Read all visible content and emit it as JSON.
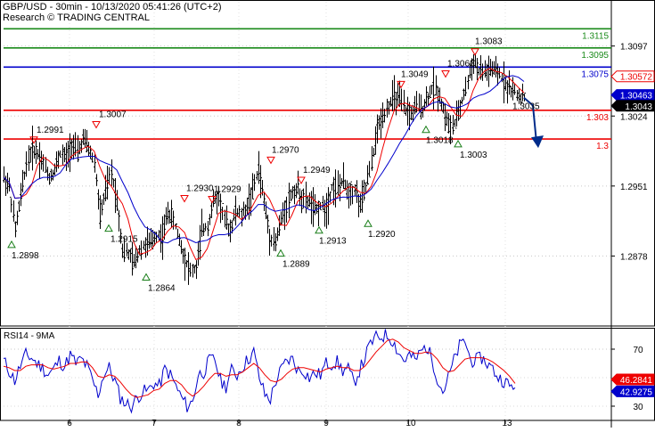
{
  "header": {
    "title": "GBP/USD - 30min - 10/13/2020 05:41:26 (UTC+2)",
    "subtitle": "Research © TRADING CENTRAL"
  },
  "colors": {
    "green": "#1a8a1a",
    "blue": "#0000cc",
    "red": "#ee0000",
    "price": "#000000",
    "arrow": "#002b8a",
    "marker_green": "#1a7f1a",
    "marker_red": "#ee0000"
  },
  "chart_data": [
    {
      "type": "line",
      "title": "GBP/USD - 30min - 10/13/2020 05:41:26 (UTC+2)",
      "x_tick_labels": [
        "6",
        "7",
        "8",
        "9",
        "10",
        "13"
      ],
      "y_tick_labels": [
        "1.3097",
        "1.3024",
        "1.2951",
        "1.2878"
      ],
      "ylim": [
        1.2805,
        1.3145
      ],
      "horizontal_levels": [
        {
          "value": 1.3115,
          "label": "1.3115",
          "color": "green"
        },
        {
          "value": 1.3095,
          "label": "1.3095",
          "color": "green"
        },
        {
          "value": 1.3075,
          "label": "1.3075",
          "color": "blue"
        },
        {
          "value": 1.303,
          "label": "1.303",
          "color": "red"
        },
        {
          "value": 1.3,
          "label": "1.3",
          "color": "red"
        }
      ],
      "price_tags": [
        {
          "value": 1.3057,
          "label": "1.30572",
          "style": "red-outline"
        },
        {
          "value": 1.3046,
          "label": "1.30463",
          "style": "blue-fill"
        },
        {
          "value": 1.3043,
          "label": "1.3043",
          "style": "black-fill"
        }
      ],
      "annotations": [
        {
          "label": "1.2898",
          "value": 1.2898,
          "kind": "low"
        },
        {
          "label": "1.2991",
          "value": 1.2991,
          "kind": "high"
        },
        {
          "label": "1.3007",
          "value": 1.3007,
          "kind": "high"
        },
        {
          "label": "1.2915",
          "value": 1.2915,
          "kind": "low"
        },
        {
          "label": "1.2864",
          "value": 1.2864,
          "kind": "low"
        },
        {
          "label": "1.2930",
          "value": 1.293,
          "kind": "high"
        },
        {
          "label": "1.2929",
          "value": 1.2929,
          "kind": "high"
        },
        {
          "label": "1.2970",
          "value": 1.297,
          "kind": "high"
        },
        {
          "label": "1.2889",
          "value": 1.2889,
          "kind": "low"
        },
        {
          "label": "1.2949",
          "value": 1.2949,
          "kind": "high"
        },
        {
          "label": "1.2913",
          "value": 1.2913,
          "kind": "low"
        },
        {
          "label": "1.2920",
          "value": 1.292,
          "kind": "low"
        },
        {
          "label": "1.3049",
          "value": 1.3049,
          "kind": "high"
        },
        {
          "label": "1.3060",
          "value": 1.306,
          "kind": "high"
        },
        {
          "label": "1.3083",
          "value": 1.3083,
          "kind": "high"
        },
        {
          "label": "1.3018",
          "value": 1.3018,
          "kind": "low"
        },
        {
          "label": "1.3003",
          "value": 1.3003,
          "kind": "low"
        },
        {
          "label": "1.3035",
          "value": 1.3035,
          "kind": "target"
        }
      ],
      "price_path": [
        1.296,
        1.295,
        1.2905,
        1.294,
        1.2975,
        1.299,
        1.2985,
        1.2975,
        1.296,
        1.2968,
        1.2985,
        1.298,
        1.2995,
        1.2985,
        1.3,
        1.299,
        1.2975,
        1.292,
        1.2945,
        1.2965,
        1.2935,
        1.2885,
        1.288,
        1.287,
        1.2885,
        1.289,
        1.2892,
        1.29,
        1.2898,
        1.2925,
        1.2915,
        1.2895,
        1.2875,
        1.2862,
        1.2865,
        1.2905,
        1.291,
        1.2935,
        1.294,
        1.2915,
        1.2905,
        1.2925,
        1.292,
        1.293,
        1.2945,
        1.297,
        1.2935,
        1.29,
        1.2892,
        1.2915,
        1.2932,
        1.2945,
        1.2948,
        1.2935,
        1.2935,
        1.2925,
        1.293,
        1.2928,
        1.295,
        1.295,
        1.2955,
        1.2945,
        1.2948,
        1.293,
        1.295,
        1.2975,
        1.301,
        1.3025,
        1.3035,
        1.3045,
        1.304,
        1.303,
        1.3025,
        1.3035,
        1.3032,
        1.3045,
        1.3055,
        1.3045,
        1.3025,
        1.301,
        1.302,
        1.304,
        1.306,
        1.3083,
        1.307,
        1.307,
        1.3072,
        1.307,
        1.3065,
        1.3055,
        1.305,
        1.3045,
        1.3043
      ],
      "projection": [
        1.3043,
        1.3035,
        1.3
      ]
    },
    {
      "type": "line",
      "title": "RSI14 - 9MA",
      "x_tick_labels": [
        "6",
        "7",
        "8",
        "9",
        "10",
        "13"
      ],
      "y_tick_labels": [
        "70",
        "30"
      ],
      "ylim": [
        20,
        85
      ],
      "price_tags": [
        {
          "value": 46.2841,
          "label": "46.2841",
          "style": "red-fill"
        },
        {
          "value": 42.9275,
          "label": "42.9275",
          "style": "blue-fill"
        }
      ],
      "series": [
        {
          "color": "blue",
          "values": [
            62,
            55,
            48,
            58,
            66,
            64,
            60,
            57,
            52,
            56,
            62,
            58,
            66,
            60,
            63,
            58,
            48,
            38,
            52,
            57,
            48,
            36,
            32,
            30,
            36,
            40,
            41,
            46,
            44,
            56,
            52,
            44,
            36,
            30,
            33,
            52,
            54,
            62,
            63,
            48,
            44,
            55,
            52,
            58,
            63,
            68,
            50,
            38,
            35,
            48,
            56,
            62,
            63,
            55,
            55,
            50,
            53,
            52,
            60,
            60,
            61,
            55,
            56,
            46,
            55,
            64,
            74,
            78,
            79,
            80,
            76,
            68,
            62,
            66,
            62,
            68,
            72,
            64,
            50,
            40,
            50,
            62,
            72,
            76,
            62,
            62,
            64,
            60,
            56,
            50,
            48,
            44,
            43
          ]
        },
        {
          "color": "red",
          "values": [
            58,
            57,
            55,
            55,
            58,
            59,
            59,
            59,
            57,
            56,
            57,
            58,
            60,
            60,
            61,
            61,
            57,
            51,
            50,
            52,
            51,
            47,
            42,
            38,
            36,
            37,
            38,
            41,
            42,
            46,
            48,
            48,
            45,
            40,
            37,
            40,
            44,
            49,
            53,
            53,
            51,
            52,
            52,
            54,
            57,
            60,
            57,
            52,
            48,
            47,
            49,
            53,
            56,
            57,
            57,
            56,
            55,
            54,
            56,
            57,
            58,
            57,
            57,
            55,
            55,
            58,
            63,
            68,
            72,
            76,
            77,
            75,
            71,
            69,
            67,
            67,
            68,
            67,
            63,
            57,
            54,
            55,
            59,
            63,
            64,
            64,
            64,
            63,
            61,
            58,
            55,
            51,
            46
          ]
        }
      ]
    }
  ]
}
